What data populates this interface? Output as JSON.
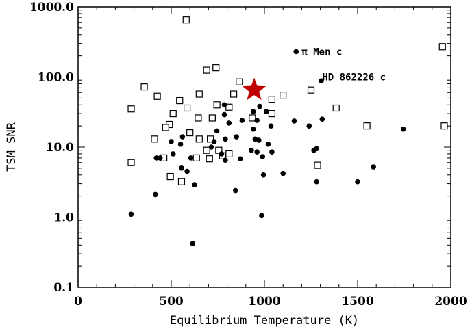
{
  "chart_data": {
    "type": "scatter",
    "title": "",
    "xlabel": "Equilibrium Temperature (K)",
    "ylabel": "TSM SNR",
    "xlim": [
      0,
      2000
    ],
    "ylim": [
      0.1,
      1000
    ],
    "yscale": "log",
    "x_ticks": [
      0,
      500,
      1000,
      1500,
      2000
    ],
    "x_tick_labels": [
      "0",
      "500",
      "1000",
      "1500",
      "2000"
    ],
    "y_ticks": [
      0.1,
      1,
      10,
      100,
      1000
    ],
    "y_tick_labels": [
      "0.1",
      "1.0",
      "10.0",
      "100.0",
      "1000.0"
    ],
    "grid": false,
    "series": [
      {
        "marker": "open-square",
        "color": "#000000",
        "points": [
          [
            580,
            650
          ],
          [
            1955,
            270
          ],
          [
            690,
            125
          ],
          [
            740,
            135
          ],
          [
            865,
            85
          ],
          [
            355,
            72
          ],
          [
            1250,
            65
          ],
          [
            425,
            53
          ],
          [
            650,
            57
          ],
          [
            1100,
            55
          ],
          [
            835,
            57
          ],
          [
            1040,
            48
          ],
          [
            545,
            46
          ],
          [
            745,
            40
          ],
          [
            810,
            37
          ],
          [
            585,
            36
          ],
          [
            285,
            35
          ],
          [
            1385,
            36
          ],
          [
            510,
            30
          ],
          [
            645,
            26
          ],
          [
            720,
            26
          ],
          [
            935,
            26
          ],
          [
            1040,
            30
          ],
          [
            490,
            21
          ],
          [
            470,
            19
          ],
          [
            1550,
            20
          ],
          [
            1965,
            20
          ],
          [
            600,
            16
          ],
          [
            410,
            13
          ],
          [
            650,
            13
          ],
          [
            710,
            13
          ],
          [
            690,
            9
          ],
          [
            755,
            9
          ],
          [
            775,
            7.5
          ],
          [
            810,
            8
          ],
          [
            460,
            7
          ],
          [
            635,
            7
          ],
          [
            705,
            6.8
          ],
          [
            285,
            6
          ],
          [
            1285,
            5.5
          ],
          [
            495,
            3.8
          ],
          [
            555,
            3.2
          ]
        ]
      },
      {
        "marker": "filled-circle",
        "color": "#000000",
        "points": [
          [
            1170,
            230
          ],
          [
            1305,
            88
          ],
          [
            975,
            38
          ],
          [
            785,
            40
          ],
          [
            940,
            32
          ],
          [
            1010,
            32
          ],
          [
            785,
            29
          ],
          [
            880,
            24
          ],
          [
            960,
            24
          ],
          [
            1160,
            23.5
          ],
          [
            1310,
            25
          ],
          [
            810,
            22
          ],
          [
            1240,
            20
          ],
          [
            1035,
            20
          ],
          [
            940,
            18
          ],
          [
            745,
            17
          ],
          [
            850,
            14
          ],
          [
            560,
            14
          ],
          [
            790,
            13
          ],
          [
            950,
            13
          ],
          [
            970,
            12.5
          ],
          [
            730,
            12
          ],
          [
            500,
            12
          ],
          [
            1020,
            11
          ],
          [
            550,
            11
          ],
          [
            715,
            10
          ],
          [
            930,
            9
          ],
          [
            1265,
            9
          ],
          [
            1280,
            9.5
          ],
          [
            960,
            8.5
          ],
          [
            1040,
            8.5
          ],
          [
            510,
            8
          ],
          [
            770,
            8
          ],
          [
            990,
            7.3
          ],
          [
            420,
            7
          ],
          [
            440,
            7
          ],
          [
            605,
            7
          ],
          [
            870,
            6.8
          ],
          [
            790,
            6.5
          ],
          [
            1745,
            18
          ],
          [
            555,
            5
          ],
          [
            585,
            4.5
          ],
          [
            995,
            4
          ],
          [
            1100,
            4.2
          ],
          [
            1585,
            5.2
          ],
          [
            625,
            2.9
          ],
          [
            1280,
            3.2
          ],
          [
            1500,
            3.2
          ],
          [
            845,
            2.4
          ],
          [
            415,
            2.1
          ],
          [
            285,
            1.1
          ],
          [
            985,
            1.05
          ],
          [
            615,
            0.42
          ]
        ]
      },
      {
        "marker": "star",
        "color": "#c00000",
        "points": [
          [
            945,
            65
          ]
        ]
      }
    ],
    "annotations": [
      {
        "text": "π Men c",
        "x": 1200,
        "y": 230,
        "anchor": "start"
      },
      {
        "text": "HD 862226 c",
        "x": 1310,
        "y": 100,
        "anchor": "start"
      }
    ]
  }
}
